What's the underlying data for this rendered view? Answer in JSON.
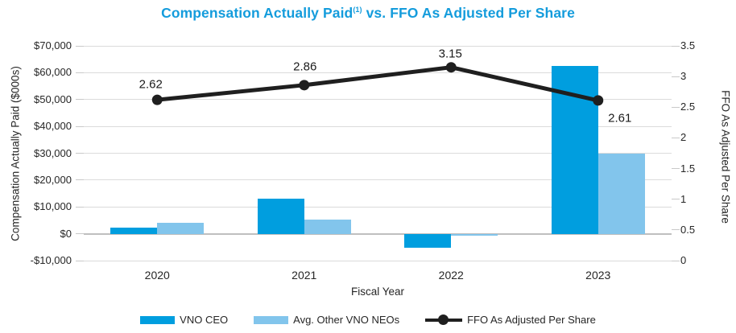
{
  "title": {
    "main": "Compensation Actually Paid",
    "superscript": "(1)",
    "tail": " vs. FFO As Adjusted Per Share"
  },
  "colors": {
    "title_blue": "#149CDC",
    "ceo_bar_blue": "#009EDF",
    "neo_bar_light_blue": "#82C5EC",
    "ffo_line_black": "#1F1F1F",
    "gridline_gray": "#DBDBDB",
    "zero_line_gray": "#BFBFBF"
  },
  "chart_data": {
    "type": "bar",
    "subtype": "grouped-bars-with-line-overlay",
    "categories": [
      "2020",
      "2021",
      "2022",
      "2023"
    ],
    "series": [
      {
        "name": "VNO CEO",
        "type": "bar",
        "axis": "left",
        "color": "#009EDF",
        "values": [
          2200,
          13000,
          -5200,
          62500
        ]
      },
      {
        "name": "Avg. Other VNO NEOs",
        "type": "bar",
        "axis": "left",
        "color": "#82C5EC",
        "values": [
          4000,
          5400,
          -800,
          30000
        ]
      },
      {
        "name": "FFO As Adjusted Per Share",
        "type": "line",
        "axis": "right",
        "color": "#1F1F1F",
        "values": [
          2.62,
          2.86,
          3.15,
          2.61
        ],
        "point_labels": [
          "2.62",
          "2.86",
          "3.15",
          "2.61"
        ]
      }
    ],
    "title": "Compensation Actually Paid(1) vs. FFO As Adjusted Per Share",
    "xlabel": "Fiscal Year",
    "left_axis": {
      "label": "Compensation Actually Paid ($000s)",
      "min": -10000,
      "max": 70000,
      "tick_values": [
        70000,
        60000,
        50000,
        40000,
        30000,
        20000,
        10000,
        0,
        -10000
      ],
      "tick_labels": [
        "$70,000",
        "$60,000",
        "$50,000",
        "$40,000",
        "$30,000",
        "$20,000",
        "$10,000",
        "$0",
        "-$10,000"
      ]
    },
    "right_axis": {
      "label": "FFO As Adjusted Per Share",
      "min": 0,
      "max": 3.5,
      "tick_values": [
        3.5,
        3,
        2.5,
        2,
        1.5,
        1,
        0.5,
        0
      ],
      "tick_labels": [
        "3.5",
        "3",
        "2.5",
        "2",
        "1.5",
        "1",
        "0.5",
        "0"
      ]
    },
    "grid": "horizontal-only",
    "legend_position": "bottom-center"
  }
}
